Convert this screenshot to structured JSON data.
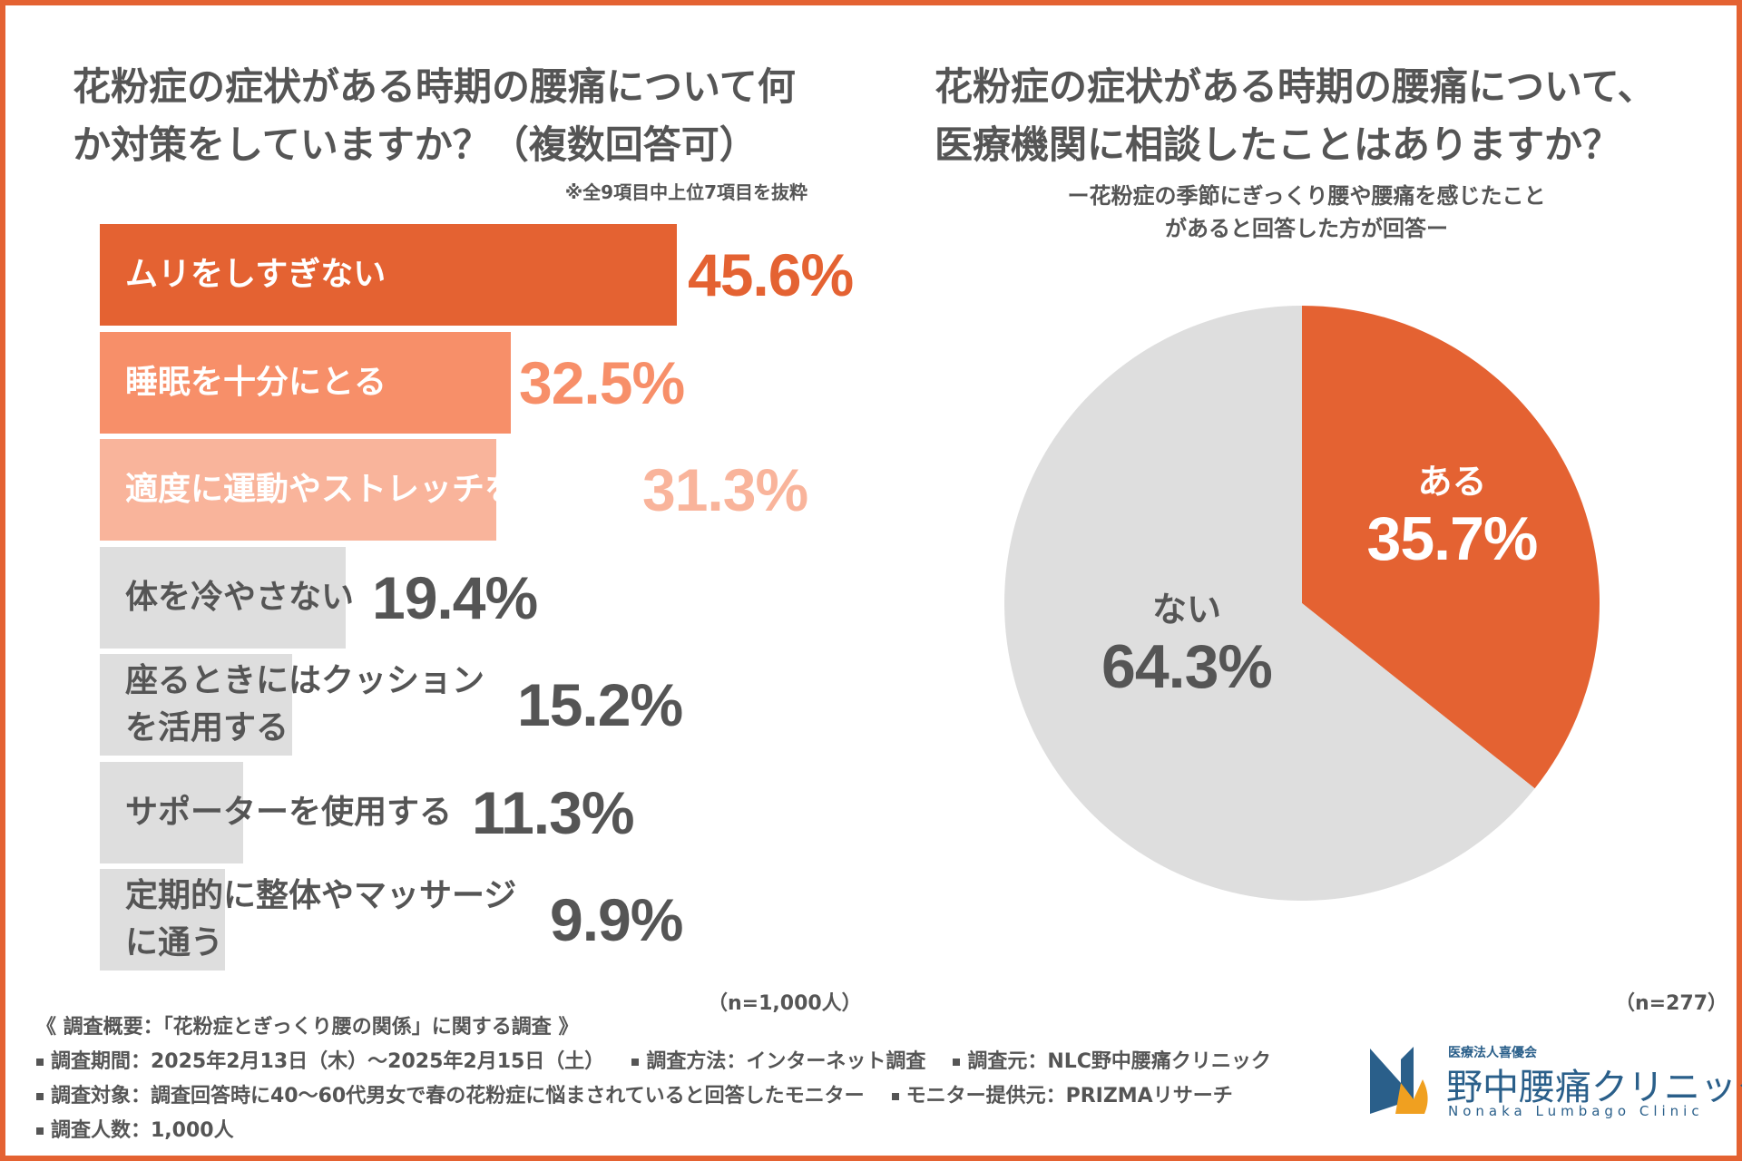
{
  "left_chart": {
    "title_line1": "花粉症の症状がある時期の腰痛について何",
    "title_line2": "か対策をしていますか？（複数回答可）",
    "note": "※全9項目中上位7項目を抜粋",
    "sample_size": "（n=1,000人）"
  },
  "right_chart": {
    "title_line1": "花粉症の症状がある時期の腰痛について、",
    "title_line2": "医療機関に相談したことはありますか？",
    "subtitle_line1": "ー花粉症の季節にぎっくり腰や腰痛を感じたこと",
    "subtitle_line2": "があると回答した方が回答ー",
    "sample_size": "（n=277）"
  },
  "chart_data": [
    {
      "type": "bar",
      "orientation": "horizontal",
      "title": "花粉症の症状がある時期の腰痛について何か対策をしていますか？（複数回答可）",
      "categories": [
        "ムリをしすぎない",
        "睡眠を十分にとる",
        "適度に運動やストレッチをする",
        "体を冷やさない",
        "座るときにはクッションを活用する",
        "サポーターを使用する",
        "定期的に整体やマッサージに通う"
      ],
      "label_lines": [
        [
          "ムリをしすぎない"
        ],
        [
          "睡眠を十分にとる"
        ],
        [
          "適度に運動やストレッチをする"
        ],
        [
          "体を冷やさない"
        ],
        [
          "座るときにはクッション",
          "を活用する"
        ],
        [
          "サポーターを使用する"
        ],
        [
          "定期的に整体やマッサージ",
          "に通う"
        ]
      ],
      "values": [
        45.6,
        32.5,
        31.3,
        19.4,
        15.2,
        11.3,
        9.9
      ],
      "value_labels": [
        "45.6%",
        "32.5%",
        "31.3%",
        "19.4%",
        "15.2%",
        "11.3%",
        "9.9%"
      ],
      "colors": [
        "#e46232",
        "#f78f69",
        "#f9b49b",
        "#dedede",
        "#dedede",
        "#dedede",
        "#dedede"
      ],
      "label_colors": [
        "#ffffff",
        "#ffffff",
        "#ffffff",
        "#555555",
        "#555555",
        "#555555",
        "#555555"
      ],
      "value_colors": [
        "#e46232",
        "#f78f69",
        "#f9b49b",
        "#555555",
        "#555555",
        "#555555",
        "#555555"
      ],
      "xlim": [
        0,
        50
      ]
    },
    {
      "type": "pie",
      "title": "花粉症の症状がある時期の腰痛について、医療機関に相談したことはありますか？",
      "categories": [
        "ある",
        "ない"
      ],
      "values": [
        35.7,
        64.3
      ],
      "value_labels": [
        "35.7%",
        "64.3%"
      ],
      "colors": [
        "#e46232",
        "#dedede"
      ],
      "label_colors": [
        "#ffffff",
        "#555555"
      ],
      "start": "12 o'clock, clockwise"
    }
  ],
  "summary": {
    "heading": "《 調査概要：「花粉症とぎっくり腰の関係」に関する調査 》",
    "period": "調査期間：2025年2月13日（木）～2025年2月15日（土）",
    "method": "調査方法：インターネット調査",
    "source": "調査元：NLC野中腰痛クリニック",
    "target": "調査対象：調査回答時に40～60代男女で春の花粉症に悩まされていると回答したモニター",
    "provider": "モニター提供元：PRIZMAリサーチ",
    "count": "調査人数：1,000人"
  },
  "logo": {
    "corp": "医療法人喜優会",
    "name": "野中腰痛クリニック",
    "english": "Nonaka Lumbago Clinic"
  },
  "colors": {
    "frame": "#e46232",
    "text": "#555555",
    "brand_blue": "#2a5f8a",
    "brand_orange": "#f0a020"
  }
}
